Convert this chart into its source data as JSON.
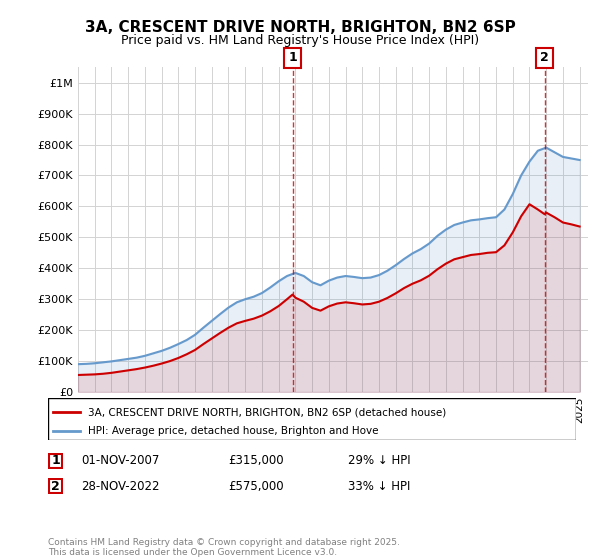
{
  "title": "3A, CRESCENT DRIVE NORTH, BRIGHTON, BN2 6SP",
  "subtitle": "Price paid vs. HM Land Registry's House Price Index (HPI)",
  "legend_line1": "3A, CRESCENT DRIVE NORTH, BRIGHTON, BN2 6SP (detached house)",
  "legend_line2": "HPI: Average price, detached house, Brighton and Hove",
  "annotation1_label": "1",
  "annotation1_date": "01-NOV-2007",
  "annotation1_price": "£315,000",
  "annotation1_hpi": "29% ↓ HPI",
  "annotation2_label": "2",
  "annotation2_date": "28-NOV-2022",
  "annotation2_price": "£575,000",
  "annotation2_hpi": "33% ↓ HPI",
  "footer": "Contains HM Land Registry data © Crown copyright and database right 2025.\nThis data is licensed under the Open Government Licence v3.0.",
  "red_color": "#cc0000",
  "blue_color": "#6699cc",
  "marker1_x": 2007.83,
  "marker2_x": 2022.9,
  "ylim_max": 1050000,
  "hpi_data": {
    "years": [
      1995,
      1995.5,
      1996,
      1996.5,
      1997,
      1997.5,
      1998,
      1998.5,
      1999,
      1999.5,
      2000,
      2000.5,
      2001,
      2001.5,
      2002,
      2002.5,
      2003,
      2003.5,
      2004,
      2004.5,
      2005,
      2005.5,
      2006,
      2006.5,
      2007,
      2007.5,
      2008,
      2008.5,
      2009,
      2009.5,
      2010,
      2010.5,
      2011,
      2011.5,
      2012,
      2012.5,
      2013,
      2013.5,
      2014,
      2014.5,
      2015,
      2015.5,
      2016,
      2016.5,
      2017,
      2017.5,
      2018,
      2018.5,
      2019,
      2019.5,
      2020,
      2020.5,
      2021,
      2021.5,
      2022,
      2022.5,
      2023,
      2023.5,
      2024,
      2024.5,
      2025
    ],
    "values": [
      90000,
      91000,
      93000,
      96000,
      99000,
      103000,
      107000,
      111000,
      117000,
      125000,
      133000,
      143000,
      155000,
      168000,
      185000,
      208000,
      230000,
      252000,
      273000,
      290000,
      300000,
      308000,
      320000,
      338000,
      358000,
      375000,
      385000,
      375000,
      355000,
      345000,
      360000,
      370000,
      375000,
      372000,
      368000,
      370000,
      378000,
      392000,
      410000,
      430000,
      448000,
      462000,
      480000,
      505000,
      525000,
      540000,
      548000,
      555000,
      558000,
      562000,
      565000,
      590000,
      640000,
      700000,
      745000,
      780000,
      790000,
      775000,
      760000,
      755000,
      750000
    ]
  },
  "red_data": {
    "years": [
      1995,
      1995.5,
      1996,
      1996.5,
      1997,
      1997.5,
      1998,
      1998.5,
      1999,
      1999.5,
      2000,
      2000.5,
      2001,
      2001.5,
      2002,
      2002.5,
      2003,
      2003.5,
      2004,
      2004.5,
      2005,
      2005.5,
      2006,
      2006.5,
      2007,
      2007.5,
      2007.83,
      2008,
      2008.5,
      2009,
      2009.5,
      2010,
      2010.5,
      2011,
      2011.5,
      2012,
      2012.5,
      2013,
      2013.5,
      2014,
      2014.5,
      2015,
      2015.5,
      2016,
      2016.5,
      2017,
      2017.5,
      2018,
      2018.5,
      2019,
      2019.5,
      2020,
      2020.5,
      2021,
      2021.5,
      2022,
      2022.5,
      2022.9,
      2023,
      2023.5,
      2024,
      2024.5,
      2025
    ],
    "values": [
      55000,
      56000,
      57000,
      59000,
      62000,
      66000,
      70000,
      74000,
      79000,
      85000,
      92000,
      100000,
      110000,
      122000,
      136000,
      155000,
      173000,
      191000,
      208000,
      222000,
      230000,
      237000,
      247000,
      261000,
      278000,
      300000,
      315000,
      305000,
      292000,
      272000,
      263000,
      277000,
      286000,
      290000,
      287000,
      283000,
      285000,
      292000,
      304000,
      319000,
      336000,
      350000,
      361000,
      376000,
      397000,
      415000,
      429000,
      436000,
      443000,
      446000,
      450000,
      452000,
      474000,
      516000,
      568000,
      607000,
      590000,
      575000,
      580000,
      565000,
      548000,
      542000,
      535000
    ]
  }
}
